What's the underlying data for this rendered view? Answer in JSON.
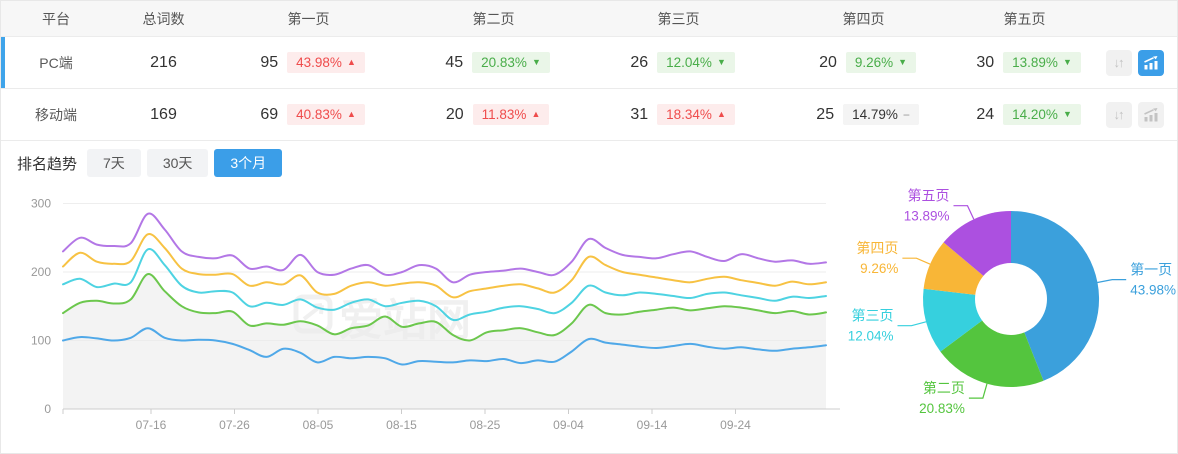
{
  "ui": {
    "accent_blue": "#3B9EE8",
    "selected_row_bar": "#3FA4EA",
    "badge_up": {
      "bg": "#FDECEC",
      "fg": "#EF4C4C"
    },
    "badge_down": {
      "bg": "#EAF6E8",
      "fg": "#49AD49"
    },
    "badge_flat": {
      "bg": "#F4F4F4",
      "fg": "#333333",
      "dash_fg": "#999999"
    }
  },
  "table": {
    "columns": [
      "平台",
      "总词数",
      "第一页",
      "第二页",
      "第三页",
      "第四页",
      "第五页"
    ],
    "rows": [
      {
        "platform": "PC端",
        "total": "216",
        "selected": true,
        "chart_active": true,
        "pages": [
          {
            "count": "95",
            "pct": "43.98%",
            "dir": "up"
          },
          {
            "count": "45",
            "pct": "20.83%",
            "dir": "down"
          },
          {
            "count": "26",
            "pct": "12.04%",
            "dir": "down"
          },
          {
            "count": "20",
            "pct": "9.26%",
            "dir": "down"
          },
          {
            "count": "30",
            "pct": "13.89%",
            "dir": "down"
          }
        ]
      },
      {
        "platform": "移动端",
        "total": "169",
        "selected": false,
        "chart_active": false,
        "pages": [
          {
            "count": "69",
            "pct": "40.83%",
            "dir": "up"
          },
          {
            "count": "20",
            "pct": "11.83%",
            "dir": "up"
          },
          {
            "count": "31",
            "pct": "18.34%",
            "dir": "up"
          },
          {
            "count": "25",
            "pct": "14.79%",
            "dir": "flat"
          },
          {
            "count": "24",
            "pct": "14.20%",
            "dir": "down"
          }
        ]
      }
    ]
  },
  "trend": {
    "label": "排名趋势",
    "tabs": [
      {
        "label": "7天",
        "active": false
      },
      {
        "label": "30天",
        "active": false
      },
      {
        "label": "3个月",
        "active": true
      }
    ]
  },
  "watermark": "爱站网",
  "chart_data": [
    {
      "type": "line",
      "title": "排名趋势 3个月",
      "x_ticks": [
        "07-16",
        "07-26",
        "08-05",
        "08-15",
        "08-25",
        "09-04",
        "09-14",
        "09-24"
      ],
      "y_ticks": [
        0,
        100,
        200,
        300
      ],
      "ylim": [
        0,
        300
      ],
      "grid": true,
      "legend": "none",
      "series": [
        {
          "name": "第一页",
          "color": "#4FA8E8",
          "values": [
            100,
            105,
            103,
            100,
            104,
            118,
            104,
            100,
            101,
            100,
            95,
            86,
            76,
            88,
            82,
            68,
            76,
            74,
            76,
            74,
            65,
            70,
            69,
            68,
            71,
            70,
            73,
            67,
            71,
            69,
            84,
            102,
            97,
            94,
            91,
            89,
            92,
            95,
            91,
            88,
            90,
            87,
            85,
            88,
            90,
            93
          ]
        },
        {
          "name": "第二页",
          "color": "#6CC74D",
          "area": "#EBEBEB",
          "values": [
            140,
            155,
            158,
            154,
            160,
            197,
            172,
            150,
            141,
            140,
            142,
            122,
            125,
            123,
            128,
            122,
            109,
            118,
            122,
            135,
            120,
            125,
            127,
            108,
            100,
            112,
            115,
            118,
            112,
            108,
            125,
            152,
            140,
            138,
            142,
            145,
            148,
            144,
            147,
            150,
            148,
            144,
            140,
            143,
            138,
            141
          ]
        },
        {
          "name": "第三页",
          "color": "#4ED3E2",
          "values": [
            182,
            190,
            178,
            183,
            185,
            233,
            210,
            180,
            170,
            172,
            170,
            150,
            155,
            152,
            160,
            148,
            145,
            155,
            160,
            150,
            155,
            158,
            150,
            130,
            138,
            142,
            148,
            150,
            146,
            140,
            155,
            180,
            170,
            166,
            170,
            168,
            165,
            162,
            168,
            170,
            166,
            162,
            158,
            164,
            162,
            165
          ]
        },
        {
          "name": "第四页",
          "color": "#F7C243",
          "values": [
            208,
            228,
            215,
            212,
            216,
            255,
            235,
            205,
            197,
            196,
            197,
            180,
            185,
            182,
            195,
            170,
            168,
            180,
            185,
            180,
            183,
            185,
            180,
            163,
            172,
            176,
            180,
            182,
            176,
            170,
            188,
            222,
            210,
            200,
            196,
            192,
            188,
            185,
            190,
            193,
            188,
            184,
            180,
            186,
            182,
            185
          ]
        },
        {
          "name": "第五页",
          "color": "#B377E6",
          "values": [
            230,
            250,
            240,
            238,
            242,
            285,
            262,
            230,
            222,
            220,
            224,
            205,
            208,
            203,
            225,
            200,
            196,
            205,
            210,
            196,
            200,
            210,
            205,
            185,
            196,
            200,
            202,
            205,
            200,
            196,
            215,
            248,
            235,
            225,
            222,
            220,
            226,
            230,
            222,
            216,
            226,
            220,
            215,
            217,
            212,
            214
          ]
        }
      ]
    },
    {
      "type": "pie",
      "inner_radius_ratio": 0.41,
      "unit": "%",
      "slices": [
        {
          "label": "第一页",
          "value": 43.98,
          "color": "#3BA0DC"
        },
        {
          "label": "第二页",
          "value": 20.83,
          "color": "#54C53E"
        },
        {
          "label": "第三页",
          "value": 12.04,
          "color": "#36D0DE"
        },
        {
          "label": "第四页",
          "value": 9.26,
          "color": "#F8B637"
        },
        {
          "label": "第五页",
          "value": 13.89,
          "color": "#AC50E0"
        }
      ]
    }
  ]
}
